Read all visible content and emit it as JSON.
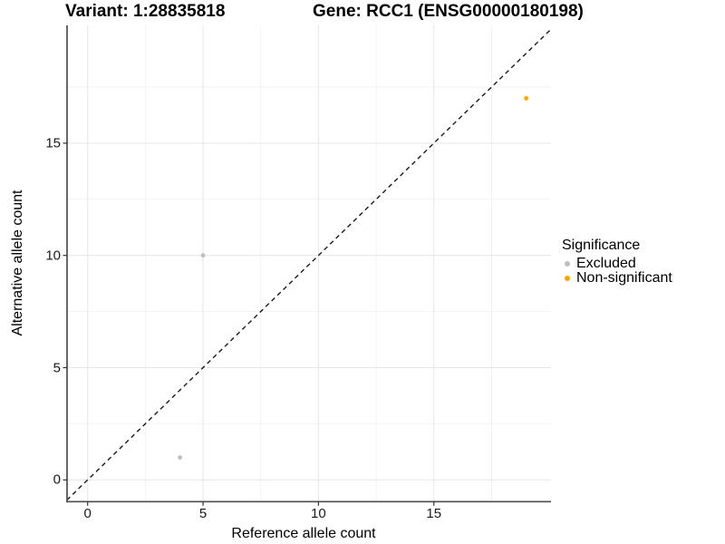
{
  "titles": {
    "variant": "Variant: 1:28835818",
    "gene": "Gene: RCC1 (ENSG00000180198)"
  },
  "legend": {
    "title": "Significance",
    "items": [
      {
        "label": "Excluded",
        "color": "#BEBEBE"
      },
      {
        "label": "Non-significant",
        "color": "#FFA500"
      }
    ]
  },
  "chart_data": {
    "type": "scatter",
    "title": "Variant: 1:28835818   Gene: RCC1 (ENSG00000180198)",
    "xlabel": "Reference allele count",
    "ylabel": "Alternative allele count",
    "xlim": [
      -0.9,
      20.1
    ],
    "ylim": [
      -0.97,
      20.25
    ],
    "x_ticks": [
      0,
      5,
      10,
      15
    ],
    "y_ticks": [
      0,
      5,
      10,
      15
    ],
    "x_minor_ticks": [
      2.5,
      7.5,
      12.5,
      17.5
    ],
    "y_minor_ticks": [
      2.5,
      7.5,
      12.5,
      17.5
    ],
    "grid": true,
    "legend_position": "right",
    "reference_line": {
      "type": "identity y=x",
      "style": "dashed",
      "color": "#1a1a1a"
    },
    "series": [
      {
        "name": "Excluded",
        "color": "#BEBEBE",
        "points": [
          {
            "x": 4,
            "y": 1
          },
          {
            "x": 5,
            "y": 10
          }
        ]
      },
      {
        "name": "Non-significant",
        "color": "#FFA500",
        "points": [
          {
            "x": 19,
            "y": 17
          }
        ]
      }
    ],
    "style": {
      "grid_major_color": "#E6E6E6",
      "grid_minor_color": "#F2F2F2",
      "axis_line_color": "#4D4D4D",
      "tick_color": "#333333",
      "text_color": "#000000"
    }
  }
}
